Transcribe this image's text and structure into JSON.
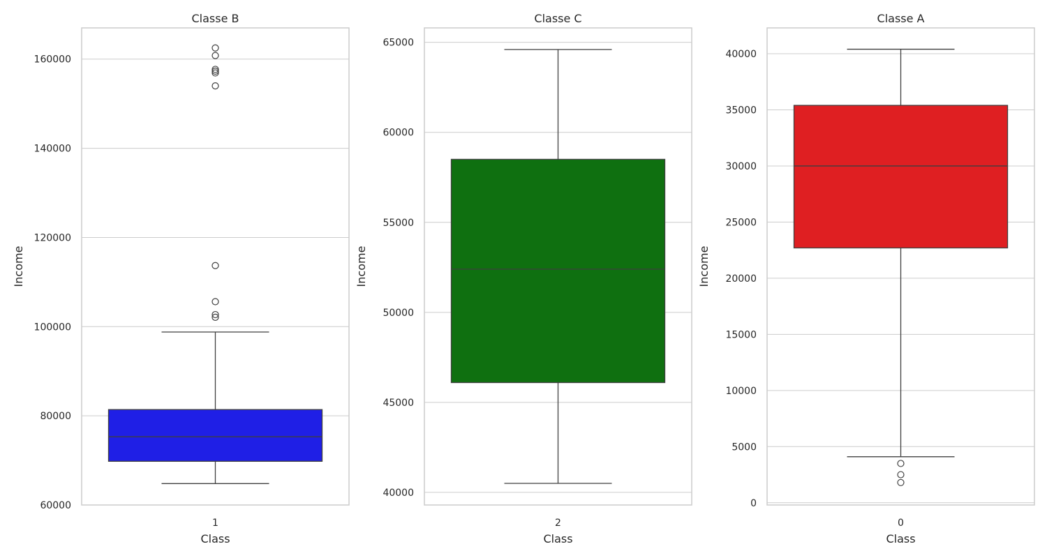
{
  "chart_data": [
    {
      "type": "box",
      "title": "Classe B",
      "xlabel": "Class",
      "ylabel": "Income",
      "categories": [
        "1"
      ],
      "color": "#1f1fe6",
      "ylim": [
        60000,
        167000
      ],
      "yticks": [
        60000,
        80000,
        100000,
        120000,
        140000,
        160000
      ],
      "grid": true,
      "box": {
        "whisker_low": 64800,
        "q1": 69800,
        "median": 75300,
        "q3": 81400,
        "whisker_high": 98800
      },
      "outliers": [
        162500,
        160800,
        157700,
        157300,
        156900,
        154000,
        113700,
        105600,
        102700,
        102100
      ]
    },
    {
      "type": "box",
      "title": "Classe C",
      "xlabel": "Class",
      "ylabel": "Income",
      "categories": [
        "2"
      ],
      "color": "#0f7010",
      "ylim": [
        39300,
        65800
      ],
      "yticks": [
        40000,
        45000,
        50000,
        55000,
        60000,
        65000
      ],
      "grid": true,
      "box": {
        "whisker_low": 40500,
        "q1": 46100,
        "median": 52400,
        "q3": 58500,
        "whisker_high": 64600
      },
      "outliers": []
    },
    {
      "type": "box",
      "title": "Classe A",
      "xlabel": "Class",
      "ylabel": "Income",
      "categories": [
        "0"
      ],
      "color": "#df1f22",
      "ylim": [
        -200,
        42300
      ],
      "yticks": [
        0,
        5000,
        10000,
        15000,
        20000,
        25000,
        30000,
        35000,
        40000
      ],
      "grid": true,
      "box": {
        "whisker_low": 4100,
        "q1": 22700,
        "median": 30000,
        "q3": 35400,
        "whisker_high": 40400
      },
      "outliers": [
        3500,
        2500,
        1800
      ]
    }
  ]
}
